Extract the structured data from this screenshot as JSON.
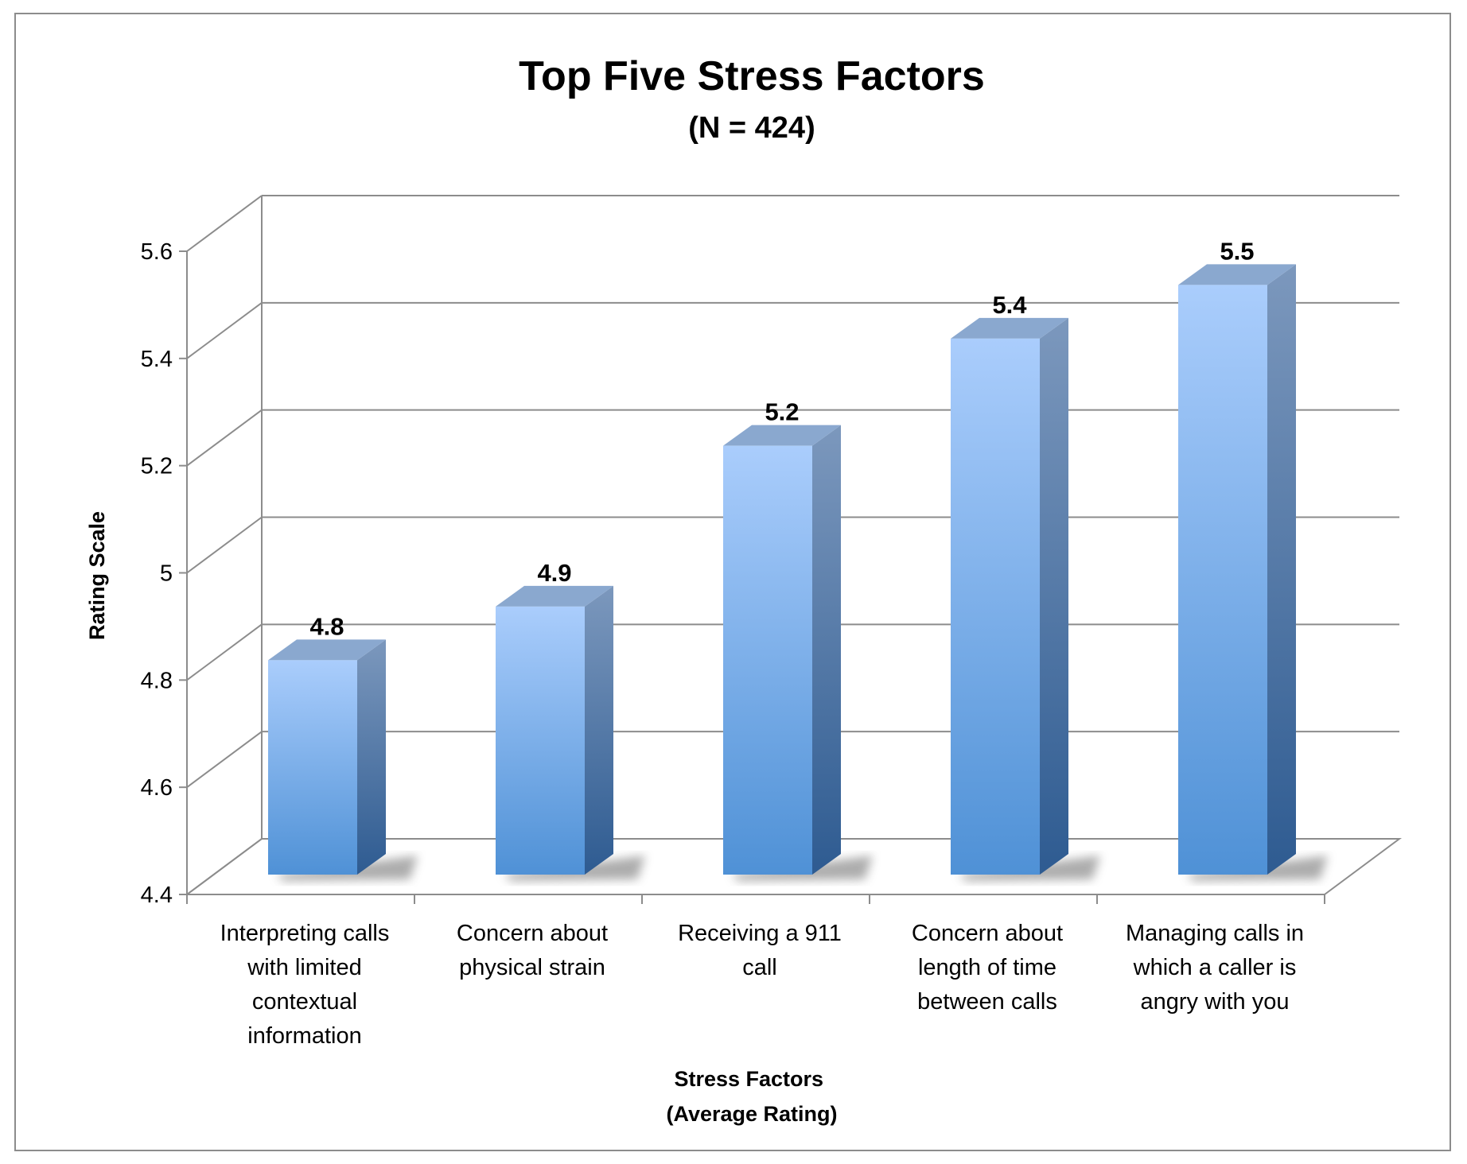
{
  "chart_data": {
    "type": "bar",
    "title": "Top Five Stress Factors",
    "subtitle": "(N = 424)",
    "xlabel": [
      "Stress Factors",
      "(Average Rating)"
    ],
    "ylabel": "Rating Scale",
    "categories": [
      [
        "Interpreting calls",
        "with limited",
        "contextual",
        "information"
      ],
      [
        "Concern about",
        "physical strain"
      ],
      [
        "Receiving a 911",
        "call"
      ],
      [
        "Concern about",
        "length of time",
        "between calls"
      ],
      [
        "Managing calls in",
        "which a caller is",
        "angry with you"
      ]
    ],
    "values": [
      4.8,
      4.9,
      5.2,
      5.4,
      5.5
    ],
    "data_labels": [
      "4.8",
      "4.9",
      "5.2",
      "5.4",
      "5.5"
    ],
    "ylim": [
      4.4,
      5.6
    ],
    "yticks": [
      "4.4",
      "4.6",
      "4.8",
      "5",
      "5.2",
      "5.4",
      "5.6"
    ],
    "ytick_values": [
      4.4,
      4.6,
      4.8,
      5.0,
      5.2,
      5.4,
      5.6
    ],
    "grid": true,
    "legend": "none",
    "style": "3d-column",
    "colors": {
      "bar_front_top": "#aacdfc",
      "bar_front_bottom": "#4f91d6",
      "bar_side_top": "#7c98bd",
      "bar_side_bottom": "#2e5b91",
      "bar_top": "#8aa8cf",
      "gridline": "#8c8c8c"
    }
  }
}
